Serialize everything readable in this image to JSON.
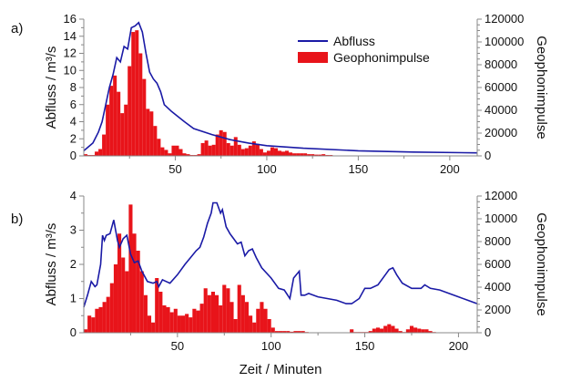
{
  "chart_data": [
    {
      "panel_label": "a)",
      "type": "line+bar",
      "xlim": [
        0,
        215
      ],
      "xticks": [
        50,
        100,
        150,
        200
      ],
      "ylabel": "Abfluss / m³/s",
      "ylim": [
        0,
        16
      ],
      "yticks": [
        0,
        2,
        4,
        6,
        8,
        10,
        12,
        14,
        16
      ],
      "y2label": "Geophonimpulse",
      "y2lim": [
        0,
        120000
      ],
      "y2ticks": [
        0,
        20000,
        40000,
        60000,
        80000,
        100000,
        120000
      ],
      "legend": {
        "placement": "top-right",
        "entries": [
          "Abfluss",
          "Geophonimpulse"
        ]
      },
      "series": [
        {
          "name": "Abfluss",
          "type": "line",
          "axis": "left",
          "color": "#1a1aa6",
          "x": [
            0,
            5,
            8,
            10,
            12,
            14,
            16,
            18,
            20,
            22,
            24,
            26,
            28,
            30,
            32,
            34,
            36,
            38,
            40,
            42,
            44,
            48,
            55,
            60,
            70,
            80,
            90,
            100,
            120,
            150,
            180,
            215
          ],
          "y": [
            0.6,
            1.5,
            2.8,
            4,
            6,
            8,
            9.5,
            11.5,
            11,
            12.8,
            12.5,
            15,
            15.2,
            15.6,
            14.5,
            12,
            9.8,
            9,
            8.5,
            7.5,
            6,
            5.2,
            4,
            3.2,
            2.5,
            1.9,
            1.5,
            1.2,
            0.9,
            0.6,
            0.45,
            0.35
          ]
        },
        {
          "name": "Geophonimpulse",
          "type": "bar",
          "axis": "right",
          "color": "#e8141a",
          "bin_width": 2,
          "x_start": 0,
          "values": [
            1500,
            750,
            750,
            3750,
            6000,
            18750,
            45000,
            61500,
            70500,
            56250,
            37500,
            45000,
            78750,
            108750,
            110250,
            90000,
            67500,
            41250,
            39000,
            26250,
            15000,
            7500,
            5250,
            2250,
            9000,
            9000,
            6000,
            2250,
            1500,
            750,
            750,
            1500,
            11250,
            13500,
            9000,
            9750,
            18750,
            22500,
            21000,
            11250,
            9000,
            16500,
            9750,
            6000,
            6750,
            9000,
            12750,
            10500,
            6000,
            3000,
            4500,
            7500,
            6750,
            4500,
            3750,
            4500,
            3000,
            2250,
            2250,
            2250,
            2250,
            1500,
            1500,
            1100,
            1100,
            1500,
            750,
            750,
            400,
            400,
            300,
            300,
            300,
            200,
            200,
            200,
            200,
            150,
            150,
            150,
            150,
            150,
            150,
            150,
            150,
            150,
            150,
            150,
            150,
            150,
            150,
            150,
            150,
            150,
            150,
            150,
            150,
            150,
            150,
            150,
            150,
            150,
            150,
            150,
            150,
            150,
            150
          ]
        }
      ]
    },
    {
      "panel_label": "b)",
      "type": "line+bar",
      "xlim": [
        0,
        210
      ],
      "xticks": [
        50,
        100,
        150,
        200
      ],
      "xlabel": "Zeit / Minuten",
      "ylabel": "Abfluss / m³/s",
      "ylim": [
        0,
        4
      ],
      "yticks": [
        0,
        1,
        2,
        3,
        4
      ],
      "y2label": "Geophonimpulse",
      "y2lim": [
        0,
        12000
      ],
      "y2ticks": [
        0,
        2000,
        4000,
        6000,
        8000,
        10000,
        12000
      ],
      "series": [
        {
          "name": "Abfluss",
          "type": "line",
          "axis": "left",
          "color": "#1a1aa6",
          "x": [
            0,
            2,
            4,
            6,
            7,
            9,
            10,
            11,
            12,
            14,
            16,
            18,
            19,
            21,
            23,
            25,
            27,
            29,
            31,
            34,
            37,
            39,
            40,
            42,
            44,
            46,
            50,
            54,
            57,
            60,
            62,
            64,
            66,
            68,
            69,
            71,
            73,
            74,
            76,
            78,
            80,
            82,
            84,
            86,
            88,
            90,
            92,
            95,
            100,
            104,
            107,
            110,
            112,
            115,
            116,
            118,
            120,
            125,
            130,
            135,
            140,
            143,
            147,
            150,
            153,
            157,
            161,
            163,
            165,
            167,
            170,
            175,
            180,
            182,
            185,
            190,
            195,
            200,
            205,
            210
          ],
          "y": [
            0.75,
            1.1,
            1.5,
            1.35,
            1.4,
            2.0,
            2.85,
            2.7,
            2.85,
            2.9,
            3.3,
            2.7,
            2.5,
            2.75,
            2.85,
            2.3,
            2.05,
            2.1,
            1.8,
            1.5,
            1.45,
            1.5,
            1.35,
            1.55,
            1.5,
            1.45,
            1.7,
            2.0,
            2.2,
            2.4,
            2.5,
            2.8,
            3.2,
            3.5,
            3.8,
            3.8,
            3.5,
            3.6,
            3.1,
            2.9,
            2.75,
            2.6,
            2.65,
            2.25,
            2.4,
            2.45,
            2.2,
            1.9,
            1.6,
            1.3,
            1.25,
            1.0,
            1.6,
            1.8,
            1.1,
            1.1,
            1.15,
            1.05,
            1.0,
            0.95,
            0.85,
            0.85,
            1.0,
            1.3,
            1.3,
            1.4,
            1.7,
            1.85,
            1.9,
            1.7,
            1.45,
            1.3,
            1.3,
            1.4,
            1.3,
            1.25,
            1.15,
            1.05,
            0.95,
            0.85
          ]
        },
        {
          "name": "Geophonimpulse",
          "type": "bar",
          "axis": "right",
          "color": "#e8141a",
          "bin_width": 2,
          "x_start": 0,
          "values": [
            300,
            1500,
            1350,
            2100,
            2250,
            2700,
            3150,
            4350,
            6000,
            8700,
            6600,
            5400,
            11250,
            8700,
            7200,
            5400,
            3300,
            1500,
            900,
            4800,
            3600,
            2400,
            2250,
            1800,
            2100,
            1500,
            1500,
            1650,
            1350,
            2100,
            1950,
            2550,
            3900,
            3300,
            3600,
            3300,
            2400,
            4200,
            3900,
            2700,
            1200,
            4200,
            3300,
            2700,
            1500,
            900,
            2100,
            2700,
            2100,
            1200,
            450,
            150,
            150,
            150,
            150,
            90,
            150,
            150,
            150,
            60,
            30,
            30,
            30,
            30,
            30,
            30,
            30,
            30,
            30,
            30,
            30,
            300,
            60,
            60,
            60,
            60,
            150,
            360,
            450,
            360,
            600,
            750,
            600,
            360,
            150,
            60,
            300,
            600,
            450,
            360,
            300,
            300,
            150,
            60,
            30,
            30,
            30,
            30,
            30,
            30,
            30,
            30,
            30,
            30,
            30
          ]
        }
      ]
    }
  ]
}
